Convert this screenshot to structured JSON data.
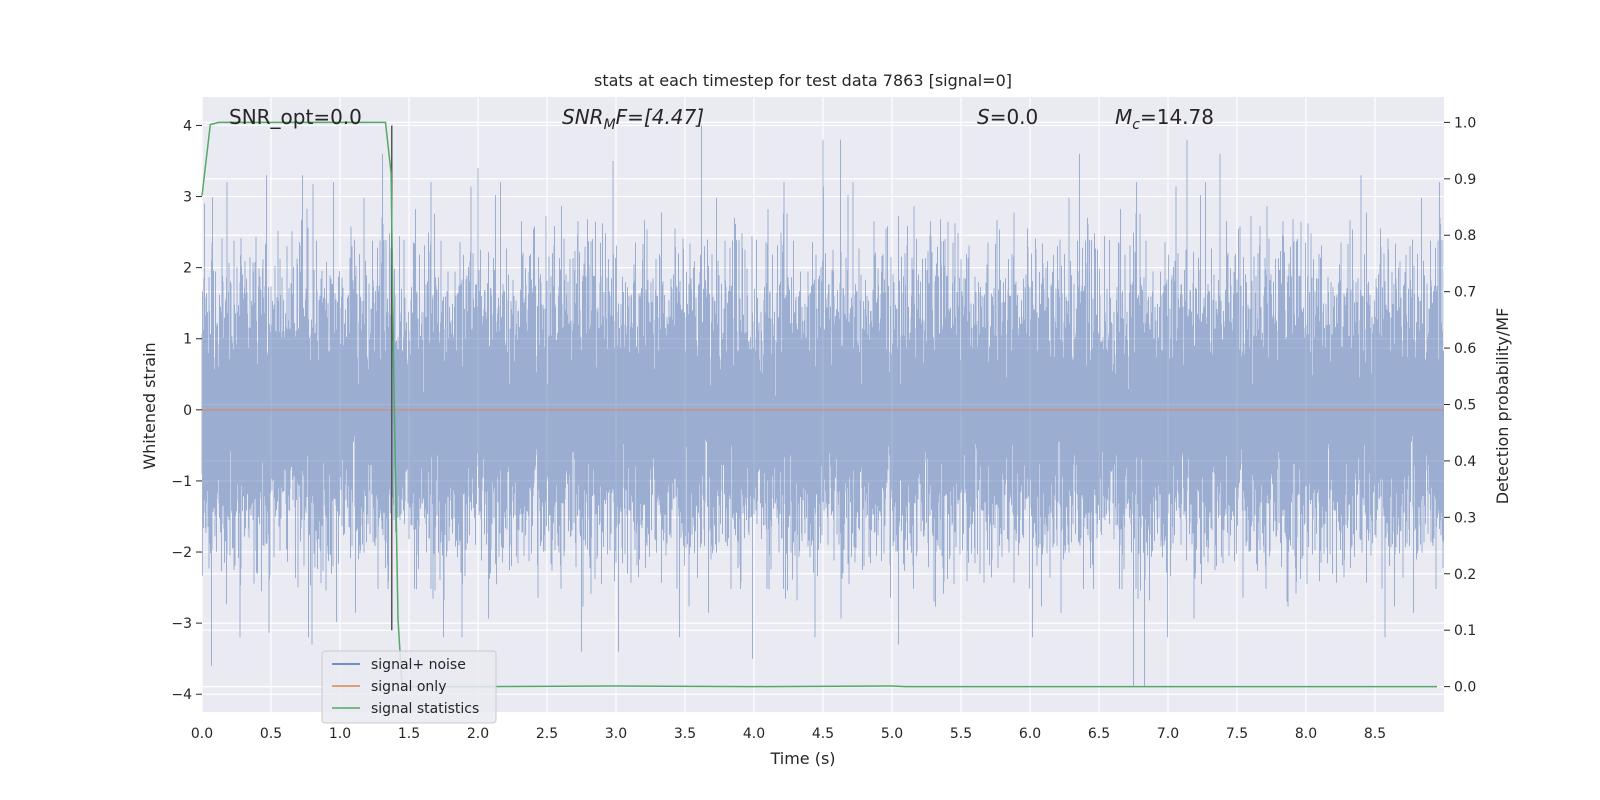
{
  "chart_data": {
    "type": "line",
    "title": "stats at each timestep for test data 7863 [signal=0]",
    "xlabel": "Time (s)",
    "ylabel": "Whitened strain",
    "y2label": "Detection probability/MF",
    "xlim": [
      0.0,
      9.0
    ],
    "ylim": [
      -4.25,
      4.4
    ],
    "y2lim": [
      -0.045,
      1.045
    ],
    "xticks": [
      "0.0",
      "0.5",
      "1.0",
      "1.5",
      "2.0",
      "2.5",
      "3.0",
      "3.5",
      "4.0",
      "4.5",
      "5.0",
      "5.5",
      "6.0",
      "6.5",
      "7.0",
      "7.5",
      "8.0",
      "8.5"
    ],
    "yticks": [
      "4",
      "3",
      "2",
      "1",
      "0",
      "−1",
      "−2",
      "−3",
      "−4"
    ],
    "y2ticks": [
      "1.0",
      "0.9",
      "0.8",
      "0.7",
      "0.6",
      "0.5",
      "0.4",
      "0.3",
      "0.2",
      "0.1",
      "0.0"
    ],
    "grid": true,
    "legend_position": "lower-left",
    "annotations": {
      "snr_opt": "SNR_opt=0.0",
      "snr_mf_base": "SNR",
      "snr_mf_sub": "M",
      "snr_mf_rest": "F=[4.47]",
      "s_var": "S",
      "s_rest": "=0.0",
      "mc_base": "M",
      "mc_sub": "c",
      "mc_rest": "=14.78"
    },
    "marker_time": 1.375,
    "series": [
      {
        "name": "signal+ noise",
        "color": "#4c72b0",
        "kind": "noise",
        "sample_rate": 2048,
        "duration": 9.0,
        "envelope_peaks": [
          {
            "t": 0.02,
            "v": 2.9
          },
          {
            "t": 0.07,
            "v": -3.6
          },
          {
            "t": 0.47,
            "v": 3.3
          },
          {
            "t": 0.73,
            "v": 3.3
          },
          {
            "t": 0.8,
            "v": -3.3
          },
          {
            "t": 1.31,
            "v": 3.6
          },
          {
            "t": 1.75,
            "v": -3.2
          },
          {
            "t": 2.0,
            "v": 3.4
          },
          {
            "t": 2.75,
            "v": -3.4
          },
          {
            "t": 2.98,
            "v": 3.5
          },
          {
            "t": 3.02,
            "v": -3.4
          },
          {
            "t": 3.62,
            "v": 4.0
          },
          {
            "t": 3.99,
            "v": -3.5
          },
          {
            "t": 4.5,
            "v": 3.8
          },
          {
            "t": 4.63,
            "v": 3.8
          },
          {
            "t": 5.05,
            "v": -3.3
          },
          {
            "t": 6.36,
            "v": 3.6
          },
          {
            "t": 6.75,
            "v": -3.9
          },
          {
            "t": 6.83,
            "v": -3.9
          },
          {
            "t": 7.14,
            "v": 3.8
          },
          {
            "t": 7.38,
            "v": 3.6
          },
          {
            "t": 8.4,
            "v": 3.3
          },
          {
            "t": 8.97,
            "v": 3.2
          }
        ]
      },
      {
        "name": "signal only",
        "color": "#dd8452",
        "kind": "flat",
        "value": 0.0
      },
      {
        "name": "signal statistics",
        "color": "#55a868",
        "axis": "right",
        "x": [
          0.0,
          0.06,
          0.12,
          0.2,
          0.5,
          1.0,
          1.3,
          1.33,
          1.37,
          1.39,
          1.42,
          1.45,
          2.0,
          3.0,
          4.0,
          5.0,
          5.1,
          6.0,
          7.0,
          8.0,
          8.95
        ],
        "y": [
          0.87,
          0.996,
          1.0,
          1.0,
          1.0,
          1.0,
          1.0,
          1.0,
          0.91,
          0.55,
          0.12,
          0.0,
          0.0,
          0.001,
          0.0,
          0.001,
          0.0,
          0.0,
          0.0,
          0.0,
          0.0
        ]
      }
    ]
  },
  "colors": {
    "plot_bg": "#eaeaf2",
    "grid": "#ffffff",
    "text": "#262626",
    "marker_line": "#555555"
  }
}
